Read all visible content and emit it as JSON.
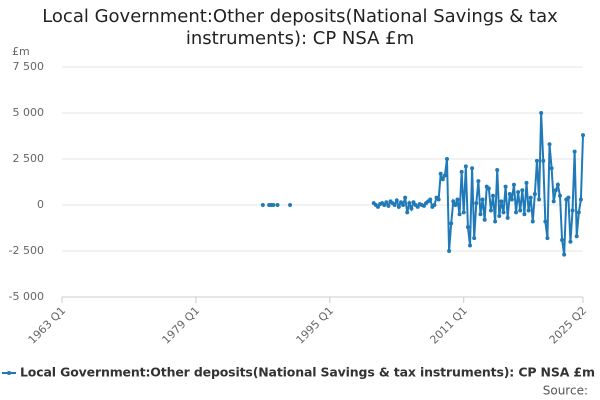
{
  "chart_data": {
    "type": "line",
    "title": "Local Government:Other deposits(National Savings & tax instruments): CP NSA £m",
    "y_unit": "£m",
    "source": "Source:",
    "xlim": [
      "1963 Q1",
      "2025 Q2"
    ],
    "xticks": [
      "1963 Q1",
      "1979 Q1",
      "1995 Q1",
      "2011 Q1",
      "2025 Q2"
    ],
    "ylim": [
      -5000,
      7500
    ],
    "yticks": [
      {
        "value": -5000,
        "label": "-5 000"
      },
      {
        "value": -2500,
        "label": "-2 500"
      },
      0,
      {
        "value": 2500,
        "label": "2 500"
      },
      {
        "value": 5000,
        "label": "5 000"
      },
      {
        "value": 7500,
        "label": "7 500"
      }
    ],
    "grid": true,
    "legend": "bottom",
    "x": [
      "1987 Q1",
      "1987 Q2",
      "1987 Q4",
      "1988 Q1",
      "1988 Q2",
      "1988 Q3",
      "1988 Q4",
      "1989 Q1",
      "1990 Q2",
      "1990 Q3",
      "2000 Q2",
      "2000 Q3",
      "2000 Q4",
      "2001 Q1",
      "2001 Q2",
      "2001 Q3",
      "2001 Q4",
      "2002 Q1",
      "2002 Q2",
      "2002 Q3",
      "2002 Q4",
      "2003 Q1",
      "2003 Q2",
      "2003 Q3",
      "2003 Q4",
      "2004 Q1",
      "2004 Q2",
      "2004 Q3",
      "2004 Q4",
      "2005 Q1",
      "2005 Q2",
      "2005 Q3",
      "2005 Q4",
      "2006 Q1",
      "2006 Q2",
      "2006 Q3",
      "2006 Q4",
      "2007 Q1",
      "2007 Q2",
      "2007 Q3",
      "2007 Q4",
      "2008 Q1",
      "2008 Q2",
      "2008 Q3",
      "2008 Q4",
      "2009 Q1",
      "2009 Q2",
      "2009 Q3",
      "2009 Q4",
      "2010 Q1",
      "2010 Q2",
      "2010 Q3",
      "2010 Q4",
      "2011 Q1",
      "2011 Q2",
      "2011 Q3",
      "2011 Q4",
      "2012 Q1",
      "2012 Q2",
      "2012 Q3",
      "2012 Q4",
      "2013 Q1",
      "2013 Q2",
      "2013 Q3",
      "2013 Q4",
      "2014 Q1",
      "2014 Q2",
      "2014 Q3",
      "2014 Q4",
      "2015 Q1",
      "2015 Q2",
      "2015 Q3",
      "2015 Q4",
      "2016 Q1",
      "2016 Q2",
      "2016 Q3",
      "2016 Q4",
      "2017 Q1",
      "2017 Q2",
      "2017 Q3",
      "2017 Q4",
      "2018 Q1",
      "2018 Q2",
      "2018 Q3",
      "2018 Q4",
      "2019 Q1",
      "2019 Q2",
      "2019 Q3",
      "2019 Q4",
      "2020 Q1",
      "2020 Q2",
      "2020 Q3",
      "2020 Q4",
      "2021 Q1",
      "2021 Q2",
      "2021 Q3",
      "2021 Q4",
      "2022 Q1",
      "2022 Q2",
      "2022 Q3",
      "2022 Q4",
      "2023 Q1",
      "2023 Q2",
      "2023 Q3",
      "2023 Q4",
      "2024 Q1",
      "2024 Q2",
      "2024 Q3",
      "2024 Q4",
      "2025 Q1",
      "2025 Q2"
    ],
    "series": [
      {
        "name": "Local Government:Other deposits(National Savings & tax instruments): CP NSA £m",
        "color": "#207ab8",
        "values": [
          0,
          null,
          0,
          0,
          0,
          null,
          0,
          null,
          0,
          null,
          100,
          0,
          -100,
          50,
          100,
          0,
          150,
          -50,
          200,
          100,
          0,
          250,
          -100,
          150,
          0,
          400,
          -400,
          100,
          -200,
          150,
          0,
          -100,
          50,
          0,
          -50,
          100,
          200,
          300,
          -100,
          0,
          400,
          300,
          1700,
          1400,
          1600,
          2500,
          -2500,
          -1000,
          200,
          0,
          300,
          -500,
          1800,
          -400,
          2100,
          -1200,
          -2200,
          2000,
          -1800,
          100,
          1300,
          -500,
          300,
          -800,
          1000,
          900,
          -300,
          500,
          -900,
          1900,
          -600,
          200,
          -400,
          1000,
          -700,
          600,
          300,
          1100,
          -400,
          700,
          -300,
          800,
          -500,
          1200,
          -300,
          400,
          -900,
          600,
          2400,
          300,
          5000,
          2400,
          -900,
          -1800,
          3300,
          2000,
          200,
          800,
          1100,
          500,
          -1900,
          -2700,
          300,
          400,
          -2000,
          -300,
          2900,
          -1700,
          -400,
          300,
          3800
        ]
      }
    ]
  }
}
